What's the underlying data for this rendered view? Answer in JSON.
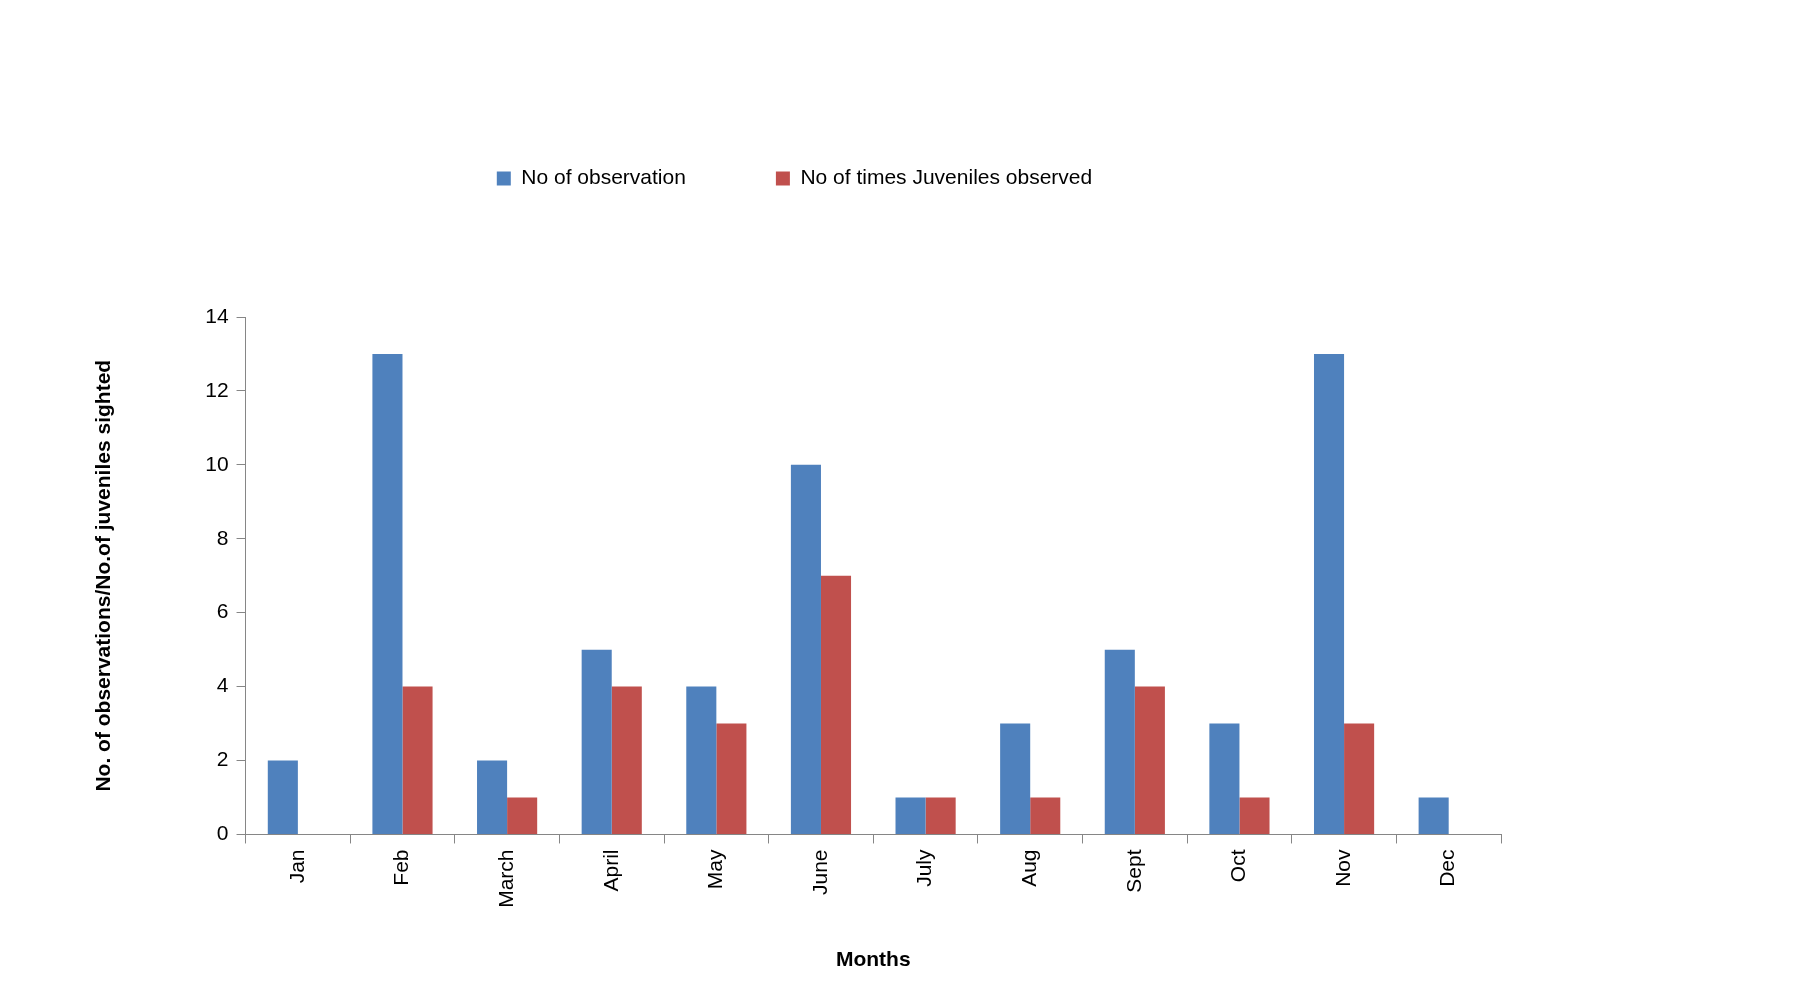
{
  "chart_data": {
    "type": "bar",
    "xlabel": "Months",
    "ylabel": "No. of observations/No.of juveniles sighted",
    "categories": [
      "Jan",
      "Feb",
      "March",
      "April",
      "May",
      "June",
      "July",
      "Aug",
      "Sept",
      "Oct",
      "Nov",
      "Dec"
    ],
    "series": [
      {
        "name": "No of observation",
        "color": "#4f81bd",
        "values": [
          2,
          13,
          2,
          5,
          4,
          10,
          1,
          3,
          5,
          3,
          13,
          1
        ]
      },
      {
        "name": "No of times Juveniles observed",
        "color": "#c0504d",
        "values": [
          0,
          4,
          1,
          4,
          3,
          7,
          1,
          1,
          4,
          1,
          3,
          0
        ]
      }
    ],
    "ylim": [
      0,
      14
    ],
    "yticks": [
      0,
      2,
      4,
      6,
      8,
      10,
      12,
      14
    ],
    "grid": false,
    "legend": "top"
  }
}
